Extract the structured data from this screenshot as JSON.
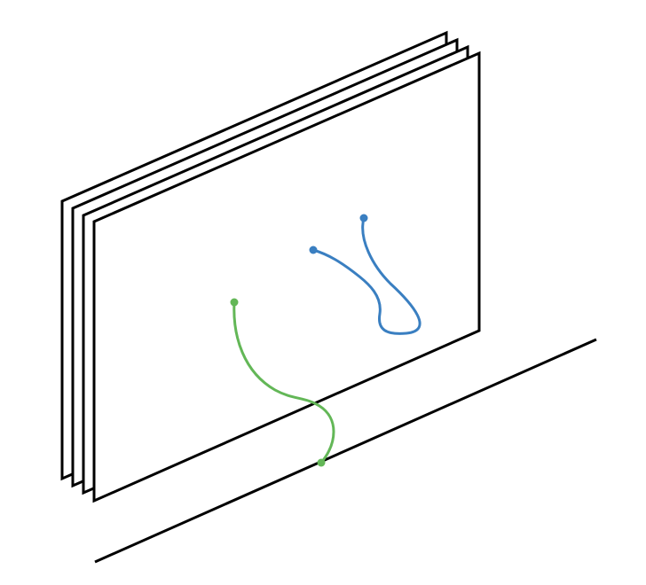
{
  "diagram": {
    "colors": {
      "background": "#ffffff",
      "outline": "#000000",
      "blue_curve": "#3a7fc1",
      "green_curve": "#63b757"
    },
    "sheets": {
      "count": 4
    },
    "curves": [
      {
        "name": "blue-curve",
        "color_key": "blue_curve"
      },
      {
        "name": "green-curve",
        "color_key": "green_curve"
      }
    ]
  }
}
